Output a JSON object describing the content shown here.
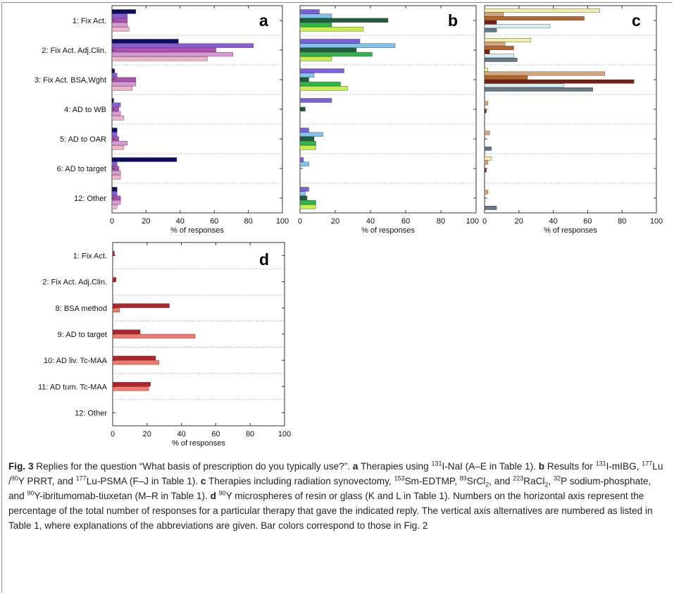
{
  "caption": {
    "fig_label": "Fig. 3",
    "html": " Replies for the question “What basis of prescription do you typically use?”. <b>a</b> Therapies using <sup>131</sup>I-NaI (A–E in Table 1). <b>b</b> Results for <sup>131</sup>I-mIBG, <sup>177</sup>Lu /<sup>90</sup>Y PRRT, and <sup>177</sup>Lu-PSMA (F–J in Table 1). <b>c</b> Therapies including radiation synovectomy, <sup>153</sup>Sm-EDTMP, <sup>89</sup>SrCl<sub>2</sub>, and <sup>223</sup>RaCl<sub>2</sub>, <sup>32</sup>P sodium-phosphate, and <sup>90</sup>Y-ibritumomab-tiuxetan (M–R in Table 1). <b>d</b> <sup>90</sup>Y microspheres of resin or glass (K and L in Table 1). Numbers on the horizontal axis represent the percentage of the total number of responses for a particular therapy that gave the indicated reply. The vertical axis alternatives are numbered as listed in Table 1, where explanations of the abbreviations are given. Bar colors correspond to those in Fig. 2"
  },
  "chart_data": [
    {
      "type": "bar",
      "orientation": "horizontal",
      "panel": "a",
      "xlabel": "% of responses",
      "xlim": [
        0,
        100
      ],
      "xticks": [
        0,
        20,
        40,
        60,
        80,
        100
      ],
      "grid": "dotted horizontal separators",
      "categories": [
        "1: Fix Act.",
        "2: Fix Act. Adj.Clin.",
        "3: Fix Act. BSA,Wght",
        "4: AD to WB",
        "5: AD to OAR",
        "6: AD to target",
        "12: Other"
      ],
      "series": [
        {
          "color": "#0d0b63",
          "values": [
            14,
            39,
            1.5,
            1,
            3,
            38,
            3
          ]
        },
        {
          "color": "#8a5bd6",
          "values": [
            9,
            83,
            3,
            5,
            3,
            3,
            3
          ]
        },
        {
          "color": "#b04fb4",
          "values": [
            9,
            61,
            14,
            4,
            4,
            4,
            5
          ]
        },
        {
          "color": "#d89ad6",
          "values": [
            9,
            71,
            14,
            5,
            9,
            5,
            5
          ]
        },
        {
          "color": "#efb3c7",
          "values": [
            10,
            56,
            12,
            7,
            7,
            5,
            3
          ]
        }
      ]
    },
    {
      "type": "bar",
      "orientation": "horizontal",
      "panel": "b",
      "xlabel": "% of responses",
      "xlim": [
        0,
        100
      ],
      "xticks": [
        0,
        20,
        40,
        60,
        80,
        100
      ],
      "grid": "dotted horizontal separators",
      "categories": [
        "1: Fix Act.",
        "2: Fix Act. Adj.Clin.",
        "3: Fix Act. BSA,Wght",
        "4: AD to WB",
        "5: AD to OAR",
        "6: AD to target",
        "12: Other"
      ],
      "series": [
        {
          "color": "#7b5fe0",
          "values": [
            11,
            34,
            25,
            18,
            5,
            2,
            5
          ]
        },
        {
          "color": "#7fc2ec",
          "values": [
            18,
            54,
            8,
            0,
            13,
            5,
            3
          ]
        },
        {
          "color": "#1e5f3a",
          "values": [
            50,
            32,
            5,
            3,
            8,
            0,
            4
          ]
        },
        {
          "color": "#2fb54a",
          "values": [
            18,
            41,
            23,
            0,
            9,
            0,
            9
          ]
        },
        {
          "color": "#c7ef4a",
          "values": [
            36,
            18,
            27,
            0,
            9,
            0,
            9
          ]
        }
      ]
    },
    {
      "type": "bar",
      "orientation": "horizontal",
      "panel": "c",
      "xlabel": "% of responses",
      "xlim": [
        0,
        100
      ],
      "xticks": [
        0,
        20,
        40,
        60,
        80,
        100
      ],
      "grid": "dotted horizontal separators",
      "categories": [
        "1: Fix Act.",
        "2: Fix Act. Adj.Clin.",
        "3: Fix Act. BSA,Wght",
        "4: AD to WB",
        "5: AD to OAR",
        "6: AD to target",
        "12: Other"
      ],
      "series": [
        {
          "color": "#f4efa6",
          "values": [
            67,
            27,
            2,
            0,
            0,
            4,
            0
          ]
        },
        {
          "color": "#d6a57a",
          "values": [
            11,
            12,
            70,
            2,
            3,
            2,
            2
          ]
        },
        {
          "color": "#b5652d",
          "values": [
            58,
            17,
            25,
            0,
            0,
            0,
            0
          ]
        },
        {
          "color": "#7a1e14",
          "values": [
            7,
            3,
            87,
            1,
            0,
            1,
            0
          ]
        },
        {
          "color": "#d7eef3",
          "values": [
            38,
            17,
            46,
            0,
            0,
            0,
            0
          ]
        },
        {
          "color": "#667788",
          "values": [
            7,
            19,
            63,
            0,
            4,
            0,
            7
          ]
        }
      ]
    },
    {
      "type": "bar",
      "orientation": "horizontal",
      "panel": "d",
      "xlabel": "% of responses",
      "xlim": [
        0,
        100
      ],
      "xticks": [
        0,
        20,
        40,
        60,
        80,
        100
      ],
      "grid": "dotted horizontal separators",
      "categories": [
        "1: Fix Act.",
        "2: Fix Act. Adj.Clin.",
        "8: BSA method",
        "9: AD to target",
        "10: AD liv. Tc-MAA",
        "11: AD tum. Tc-MAA",
        "12: Other"
      ],
      "series": [
        {
          "color": "#b2232b",
          "values": [
            1,
            2,
            33,
            16,
            25,
            22,
            0
          ]
        },
        {
          "color": "#f07a6a",
          "values": [
            0,
            0,
            4,
            48,
            27,
            21,
            0
          ]
        }
      ]
    }
  ]
}
